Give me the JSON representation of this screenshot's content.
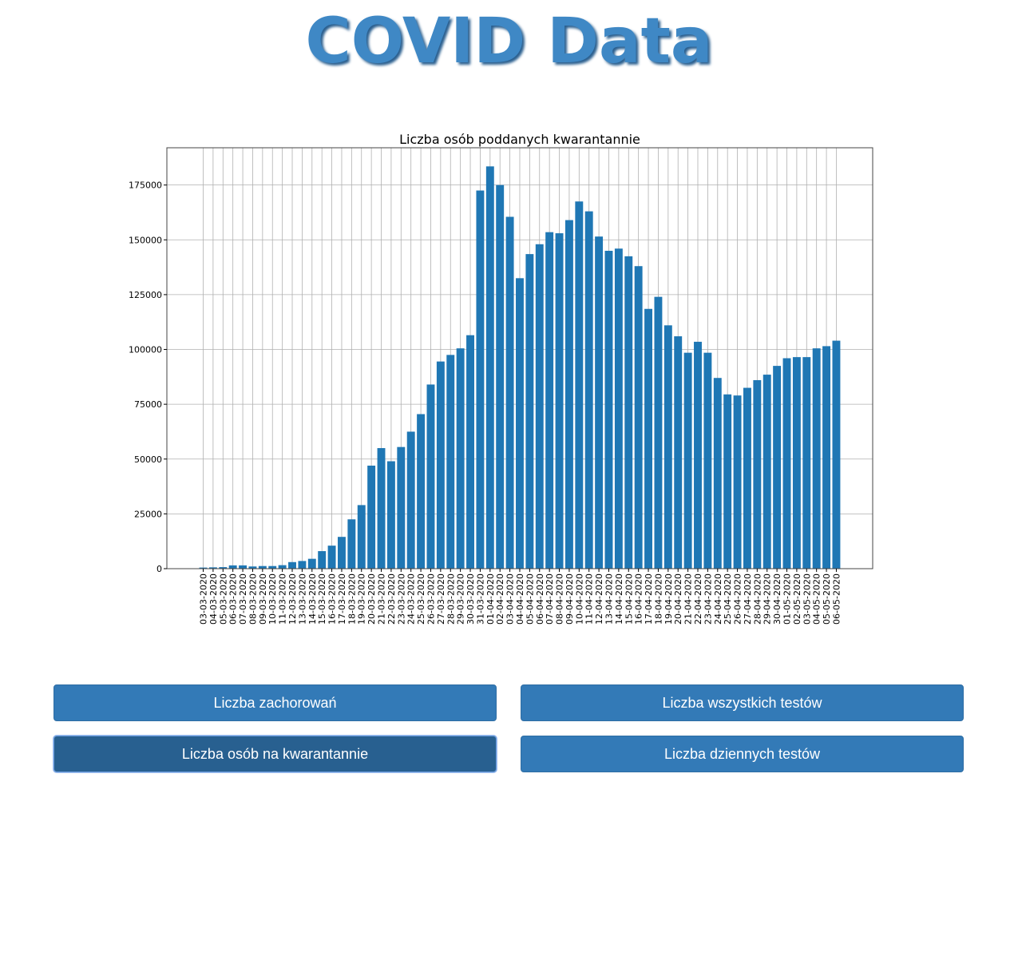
{
  "page": {
    "title": "COVID Data",
    "title_color": "#3f88c5"
  },
  "buttons": {
    "cases": "Liczba zachorowań",
    "all_tests": "Liczba wszystkich testów",
    "quarantine": "Liczba osób na kwarantannie",
    "daily_tests": "Liczba dziennych testów",
    "active": "quarantine",
    "color": "#337ab7",
    "active_color": "#286090"
  },
  "chart_data": {
    "type": "bar",
    "title": "Liczba osób poddanych kwarantannie",
    "xlabel": "",
    "ylabel": "",
    "ylim": [
      0,
      192000
    ],
    "yticks": [
      0,
      25000,
      50000,
      75000,
      100000,
      125000,
      150000,
      175000
    ],
    "grid": true,
    "bar_color": "#1f77b4",
    "categories": [
      "03-03-2020",
      "04-03-2020",
      "05-03-2020",
      "06-03-2020",
      "07-03-2020",
      "08-03-2020",
      "09-03-2020",
      "10-03-2020",
      "11-03-2020",
      "12-03-2020",
      "13-03-2020",
      "14-03-2020",
      "15-03-2020",
      "16-03-2020",
      "17-03-2020",
      "18-03-2020",
      "19-03-2020",
      "20-03-2020",
      "21-03-2020",
      "22-03-2020",
      "23-03-2020",
      "24-03-2020",
      "25-03-2020",
      "26-03-2020",
      "27-03-2020",
      "28-03-2020",
      "29-03-2020",
      "30-03-2020",
      "31-03-2020",
      "01-04-2020",
      "02-04-2020",
      "03-04-2020",
      "04-04-2020",
      "05-04-2020",
      "06-04-2020",
      "07-04-2020",
      "08-04-2020",
      "09-04-2020",
      "10-04-2020",
      "11-04-2020",
      "12-04-2020",
      "13-04-2020",
      "14-04-2020",
      "15-04-2020",
      "16-04-2020",
      "17-04-2020",
      "18-04-2020",
      "19-04-2020",
      "20-04-2020",
      "21-04-2020",
      "22-04-2020",
      "23-04-2020",
      "24-04-2020",
      "25-04-2020",
      "26-04-2020",
      "27-04-2020",
      "28-04-2020",
      "29-04-2020",
      "30-04-2020",
      "01-05-2020",
      "02-05-2020",
      "03-05-2020",
      "04-05-2020",
      "05-05-2020",
      "06-05-2020"
    ],
    "values": [
      500,
      600,
      700,
      1500,
      1500,
      1000,
      1200,
      1200,
      1600,
      3000,
      3500,
      4500,
      8000,
      10500,
      14500,
      22500,
      29000,
      47000,
      55000,
      49000,
      55500,
      62500,
      70500,
      84000,
      94500,
      97500,
      100500,
      106500,
      172500,
      183500,
      175000,
      160500,
      132500,
      143500,
      148000,
      153500,
      153000,
      159000,
      167500,
      163000,
      151500,
      145000,
      146000,
      142500,
      138000,
      118500,
      124000,
      111000,
      106000,
      98500,
      103500,
      98500,
      87000,
      79500,
      79000,
      82500,
      86000,
      88500,
      92500,
      96000,
      96500,
      96500,
      100500,
      101500,
      104000
    ]
  }
}
